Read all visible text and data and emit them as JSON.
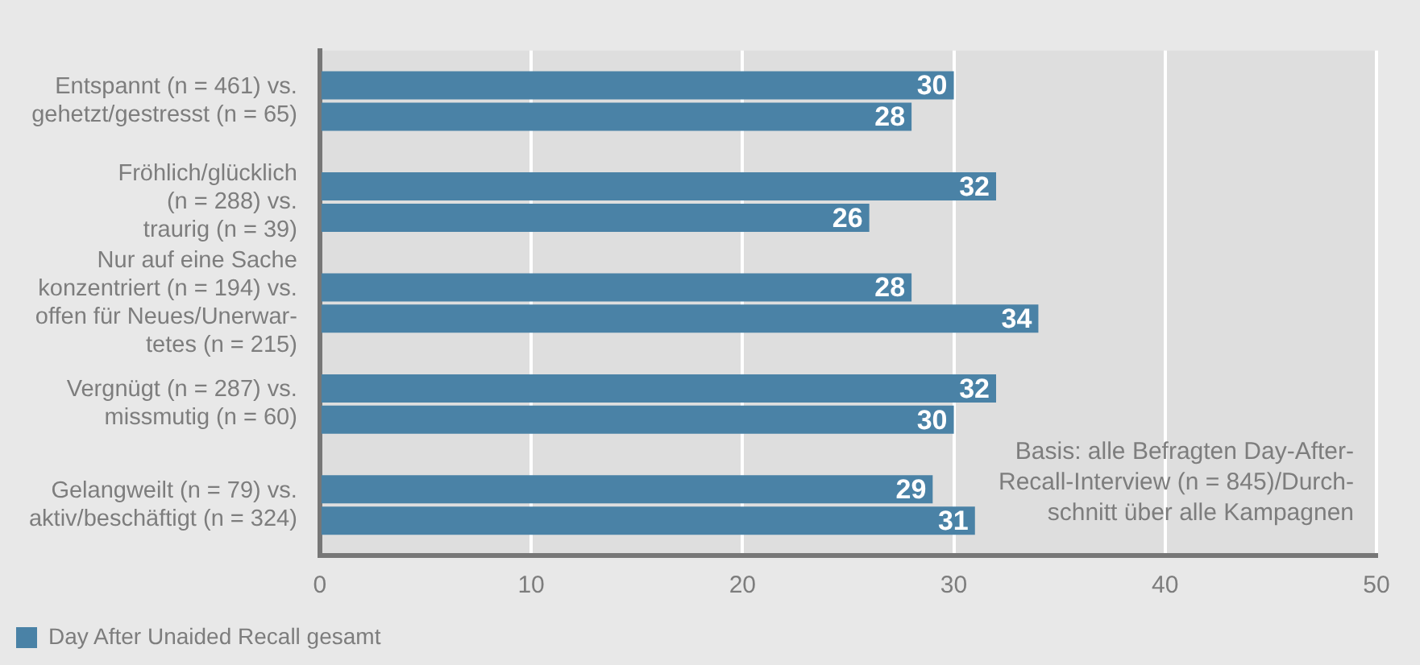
{
  "chart_data": {
    "type": "bar",
    "orientation": "horizontal",
    "categories": [
      "Entspannt (n = 461) vs.\ngehetzt/gestresst (n = 65)",
      "Fröhlich/glücklich\n(n = 288) vs.\ntraurig (n = 39)",
      "Nur auf eine Sache\nkonzentriert (n = 194) vs.\noffen für Neues/Unerwar-\ntetes (n = 215)",
      "Vergnügt (n = 287) vs.\nmissmutig (n = 60)",
      "Gelangweilt (n = 79) vs.\naktiv/beschäftigt (n = 324)"
    ],
    "series": [
      {
        "name": "Day After Unaided Recall gesamt",
        "color": "#4a82a6",
        "values": [
          30,
          32,
          28,
          32,
          29
        ]
      },
      {
        "color": "#4a82a6",
        "values": [
          28,
          26,
          34,
          30,
          31
        ]
      }
    ],
    "xlim": [
      0,
      50
    ],
    "xticks": [
      0,
      10,
      20,
      30,
      40,
      50
    ],
    "grid": "x",
    "legend": "bottom",
    "data_labels": true,
    "annotations": [
      "Basis: alle Befragten Day-After-\nRecall-Interview (n = 845)/Durch-\nschnitt über alle Kampagnen"
    ]
  }
}
